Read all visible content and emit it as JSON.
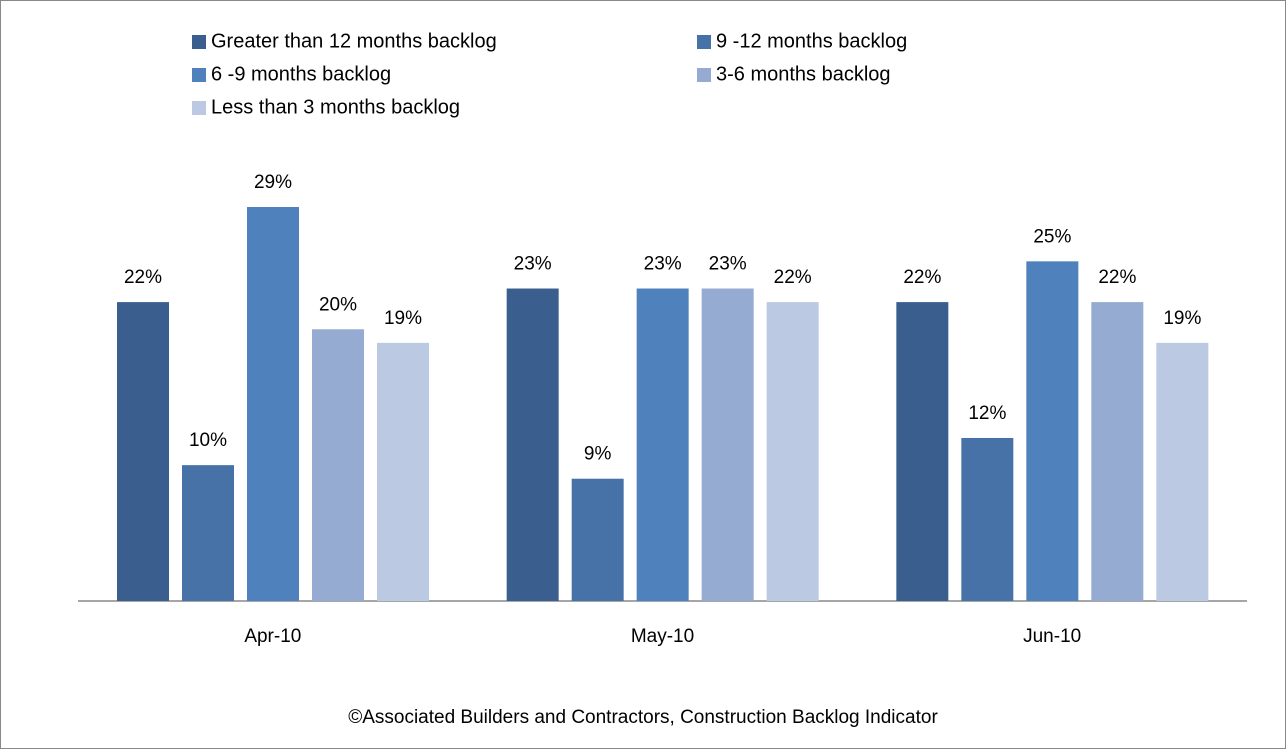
{
  "chart_data": {
    "type": "bar",
    "categories": [
      "Apr-10",
      "May-10",
      "Jun-10"
    ],
    "series": [
      {
        "name": "Greater than 12 months backlog",
        "color": "#3a5f8e",
        "values": [
          22,
          23,
          22
        ],
        "value_labels": [
          "22%",
          "23%",
          "22%"
        ]
      },
      {
        "name": "9 -12 months backlog",
        "color": "#4672a8",
        "values": [
          10,
          9,
          12
        ],
        "value_labels": [
          "10%",
          "9%",
          "12%"
        ]
      },
      {
        "name": "6 -9 months backlog",
        "color": "#4f81bd",
        "values": [
          29,
          23,
          25
        ],
        "value_labels": [
          "29%",
          "23%",
          "25%"
        ]
      },
      {
        "name": "3-6 months backlog",
        "color": "#95abd2",
        "values": [
          20,
          23,
          22
        ],
        "value_labels": [
          "20%",
          "23%",
          "22%"
        ]
      },
      {
        "name": "Less than 3 months backlog",
        "color": "#bcc9e2",
        "values": [
          19,
          22,
          19
        ],
        "value_labels": [
          "19%",
          "22%",
          "19%"
        ]
      }
    ],
    "source": "©Associated Builders and Contractors, Construction Backlog Indicator",
    "legend": "top"
  }
}
